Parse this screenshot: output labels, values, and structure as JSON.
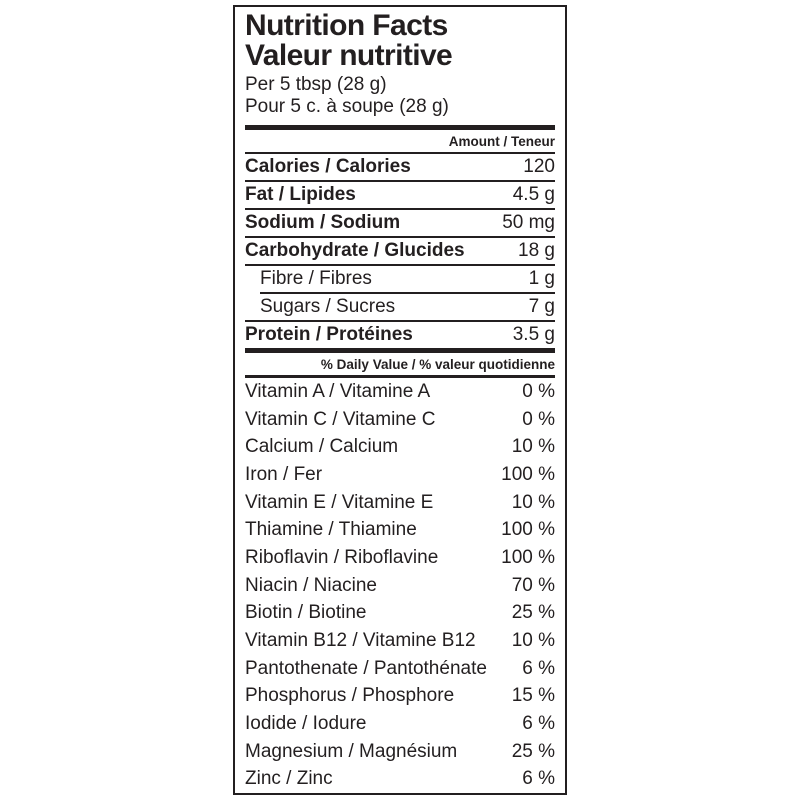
{
  "label": {
    "title_en": "Nutrition Facts",
    "title_fr": "Valeur nutritive",
    "serving_en": "Per 5 tbsp (28 g)",
    "serving_fr": "Pour 5 c. à soupe (28 g)",
    "amount_header": "Amount / Teneur",
    "daily_value_header": "% Daily Value / % valeur quotidienne",
    "colors": {
      "ink": "#231f20",
      "background": "#ffffff"
    },
    "nutrients": [
      {
        "label": "Calories / Calories",
        "value": "120"
      },
      {
        "label": "Fat / Lipides",
        "value": "4.5 g"
      },
      {
        "label": "Sodium / Sodium",
        "value": "50 mg"
      },
      {
        "label": "Carbohydrate / Glucides",
        "value": "18 g"
      },
      {
        "label": "Fibre / Fibres",
        "value": "1 g"
      },
      {
        "label": "Sugars / Sucres",
        "value": "7 g"
      },
      {
        "label": "Protein / Protéines",
        "value": "3.5 g"
      }
    ],
    "vitamins": [
      {
        "label": "Vitamin A / Vitamine A",
        "value": "0 %"
      },
      {
        "label": "Vitamin C / Vitamine C",
        "value": "0 %"
      },
      {
        "label": "Calcium / Calcium",
        "value": "10 %"
      },
      {
        "label": "Iron / Fer",
        "value": "100 %"
      },
      {
        "label": "Vitamin E / Vitamine E",
        "value": "10 %"
      },
      {
        "label": "Thiamine / Thiamine",
        "value": "100 %"
      },
      {
        "label": "Riboflavin / Riboflavine",
        "value": "100 %"
      },
      {
        "label": "Niacin / Niacine",
        "value": "70 %"
      },
      {
        "label": "Biotin / Biotine",
        "value": "25 %"
      },
      {
        "label": "Vitamin B12 / Vitamine B12",
        "value": "10 %"
      },
      {
        "label": "Pantothenate / Pantothénate",
        "value": "6 %"
      },
      {
        "label": "Phosphorus / Phosphore",
        "value": "15 %"
      },
      {
        "label": "Iodide / Iodure",
        "value": "6 %"
      },
      {
        "label": "Magnesium / Magnésium",
        "value": "25 %"
      },
      {
        "label": "Zinc / Zinc",
        "value": "6 %"
      }
    ]
  }
}
